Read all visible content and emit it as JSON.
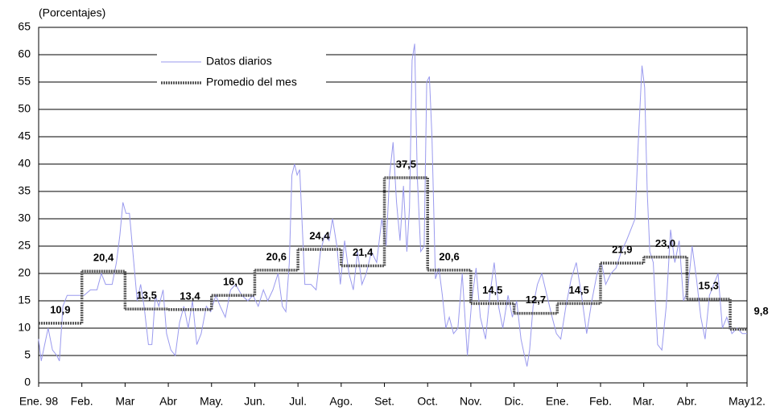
{
  "chart_data": {
    "type": "line",
    "y_label": "(Porcentajes)",
    "xlim": [
      0,
      16.39
    ],
    "xticks": [
      {
        "value": 0,
        "label": "Ene. 98"
      },
      {
        "value": 1,
        "label": "Feb."
      },
      {
        "value": 2,
        "label": "Mar"
      },
      {
        "value": 3,
        "label": "Abr"
      },
      {
        "value": 4,
        "label": "May."
      },
      {
        "value": 5,
        "label": "Jun."
      },
      {
        "value": 6,
        "label": "Jul."
      },
      {
        "value": 7,
        "label": "Ago."
      },
      {
        "value": 8,
        "label": "Set."
      },
      {
        "value": 9,
        "label": "Oct."
      },
      {
        "value": 10,
        "label": "Nov."
      },
      {
        "value": 11,
        "label": "Dic."
      },
      {
        "value": 12,
        "label": "Ene."
      },
      {
        "value": 13,
        "label": "Feb."
      },
      {
        "value": 14,
        "label": "Mar."
      },
      {
        "value": 15,
        "label": "Abr."
      },
      {
        "value": 16.39,
        "label": "May12."
      }
    ],
    "ylim": [
      0,
      65
    ],
    "yticks": [
      0,
      5,
      10,
      15,
      20,
      25,
      30,
      35,
      40,
      45,
      50,
      55,
      60,
      65
    ],
    "grid": true,
    "series": [
      {
        "name": "Datos diarios",
        "color": "#9a9aee",
        "x": [
          0,
          0.06,
          0.14,
          0.22,
          0.32,
          0.42,
          0.48,
          0.56,
          0.66,
          0.8,
          0.95,
          1.05,
          1.2,
          1.35,
          1.45,
          1.55,
          1.7,
          1.8,
          1.88,
          1.95,
          2.02,
          2.1,
          2.18,
          2.28,
          2.36,
          2.44,
          2.54,
          2.62,
          2.7,
          2.78,
          2.88,
          2.96,
          3.06,
          3.16,
          3.26,
          3.36,
          3.46,
          3.56,
          3.66,
          3.76,
          3.88,
          3.98,
          4.1,
          4.2,
          4.32,
          4.44,
          4.56,
          4.7,
          4.84,
          4.96,
          5.08,
          5.2,
          5.3,
          5.42,
          5.54,
          5.64,
          5.72,
          5.8,
          5.86,
          5.92,
          5.98,
          6.04,
          6.16,
          6.3,
          6.42,
          6.52,
          6.62,
          6.72,
          6.8,
          6.9,
          6.98,
          7.08,
          7.18,
          7.28,
          7.38,
          7.48,
          7.58,
          7.7,
          7.82,
          7.94,
          8.04,
          8.12,
          8.2,
          8.28,
          8.36,
          8.44,
          8.52,
          8.58,
          8.64,
          8.7,
          8.76,
          8.84,
          8.92,
          8.98,
          9.04,
          9.1,
          9.18,
          9.26,
          9.34,
          9.42,
          9.5,
          9.6,
          9.7,
          9.8,
          9.92,
          10.02,
          10.12,
          10.22,
          10.34,
          10.44,
          10.54,
          10.64,
          10.74,
          10.86,
          10.96,
          11.06,
          11.16,
          11.24,
          11.3,
          11.36,
          11.44,
          11.54,
          11.64,
          11.76,
          11.88,
          11.98,
          12.08,
          12.2,
          12.32,
          12.44,
          12.56,
          12.68,
          12.8,
          12.92,
          13.02,
          13.12,
          13.24,
          13.36,
          13.48,
          13.6,
          13.7,
          13.8,
          13.88,
          13.96,
          14.02,
          14.08,
          14.14,
          14.22,
          14.32,
          14.42,
          14.52,
          14.62,
          14.72,
          14.82,
          14.92,
          15.02,
          15.12,
          15.22,
          15.32,
          15.42,
          15.52,
          15.62,
          15.72,
          15.82,
          15.92,
          16.04,
          16.16,
          16.28,
          16.39
        ],
        "values": [
          8,
          4,
          7,
          10,
          6,
          5,
          4,
          14,
          16,
          16,
          16,
          16,
          17,
          17,
          20,
          18,
          18,
          22,
          27,
          33,
          31,
          31,
          24,
          15,
          18,
          14,
          7,
          7,
          16,
          14,
          17,
          9,
          6,
          5,
          11,
          14,
          10,
          15,
          7,
          9,
          14,
          13,
          16,
          14,
          12,
          17,
          18,
          16,
          15,
          16,
          14,
          17,
          15,
          17,
          20,
          14,
          13,
          22,
          38,
          40,
          38,
          39,
          18,
          18,
          17,
          24,
          27,
          26,
          30,
          25,
          18,
          26,
          20,
          17,
          24,
          18,
          20,
          24,
          22,
          30,
          25,
          38,
          44,
          33,
          26,
          36,
          24,
          32,
          59,
          62,
          38,
          24,
          25,
          55,
          56,
          45,
          19,
          21,
          16,
          10,
          12,
          9,
          10,
          20,
          5,
          15,
          21,
          12,
          8,
          16,
          22,
          14,
          10,
          16,
          12,
          15,
          8,
          5,
          3,
          6,
          14,
          18,
          20,
          16,
          12,
          9,
          8,
          14,
          19,
          22,
          16,
          9,
          15,
          20,
          22,
          18,
          20,
          21,
          24,
          26,
          28,
          30,
          45,
          58,
          54,
          35,
          24,
          22,
          7,
          6,
          14,
          28,
          22,
          26,
          15,
          17,
          25,
          19,
          12,
          8,
          16,
          18,
          20,
          10,
          12,
          9,
          10,
          9,
          9
        ]
      },
      {
        "name": "Promedio del mes",
        "color": "#555555",
        "x": [
          0,
          1,
          2,
          3,
          4,
          5,
          6,
          7,
          8,
          9,
          10,
          11,
          12,
          13,
          14,
          15,
          16
        ],
        "values": [
          10.9,
          20.4,
          13.5,
          13.4,
          16.0,
          20.6,
          24.4,
          21.4,
          37.5,
          20.6,
          14.5,
          12.7,
          14.5,
          21.9,
          23.0,
          15.3,
          9.8
        ],
        "value_labels": [
          "10,9",
          "20,4",
          "13,5",
          "13,4",
          "16,0",
          "20,6",
          "24,4",
          "21,4",
          "37,5",
          "20,6",
          "14,5",
          "12,7",
          "14,5",
          "21,9",
          "23,0",
          "15,3",
          "9,8"
        ]
      }
    ]
  }
}
